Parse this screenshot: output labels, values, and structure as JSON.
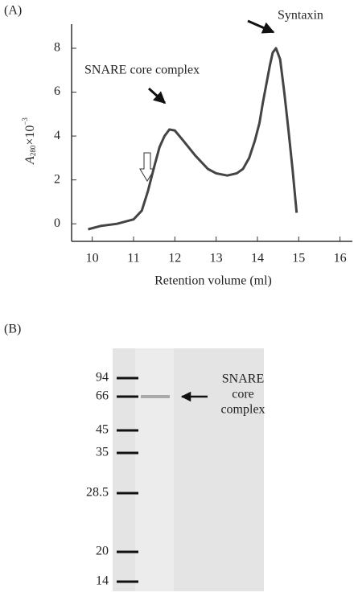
{
  "chart_data": {
    "type": "line",
    "panel_label": "(A)",
    "xlabel": "Retention volume (ml)",
    "ylabel": {
      "main": "A",
      "sub": "280",
      "mid": "×10",
      "sup": "−3"
    },
    "x": [
      9.9,
      10.2,
      10.6,
      11.0,
      11.2,
      11.35,
      11.5,
      11.63,
      11.75,
      11.87,
      12.0,
      12.2,
      12.5,
      12.8,
      13.0,
      13.27,
      13.5,
      13.65,
      13.8,
      13.94,
      14.05,
      14.13,
      14.22,
      14.3,
      14.37,
      14.45,
      14.55,
      14.65,
      14.75,
      14.85,
      14.95
    ],
    "series": [
      {
        "color": "#444444",
        "values": [
          -0.25,
          -0.1,
          0.0,
          0.2,
          0.6,
          1.5,
          2.6,
          3.5,
          4.0,
          4.3,
          4.25,
          3.8,
          3.1,
          2.5,
          2.3,
          2.2,
          2.3,
          2.5,
          3.0,
          3.8,
          4.6,
          5.5,
          6.4,
          7.2,
          7.8,
          8.0,
          7.5,
          6.0,
          4.3,
          2.5,
          0.5
        ]
      }
    ],
    "xlim": [
      9.5,
      16.3
    ],
    "ylim": [
      -0.8,
      9.1
    ],
    "xticks": [
      10,
      11,
      12,
      13,
      14,
      15,
      16
    ],
    "yticks": [
      0,
      2,
      4,
      6,
      8
    ],
    "annotations": [
      "Syntaxin",
      "SNARE  core  complex"
    ]
  },
  "gel": {
    "panel_label": "(B)",
    "markers": [
      "94",
      "66",
      "45",
      "35",
      "28.5",
      "20",
      "14"
    ],
    "band_label": [
      "SNARE",
      "core",
      "complex"
    ]
  }
}
